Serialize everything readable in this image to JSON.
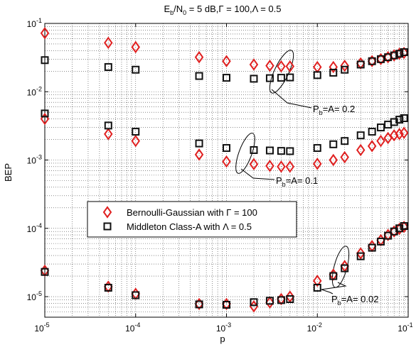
{
  "chart_data": {
    "type": "scatter",
    "title": {
      "base": "E",
      "sub": "b",
      "rest1": "/N",
      "sub2": "0",
      "rest2": " = 5 dB,Γ = 100,Λ = 0.5"
    },
    "xlabel": "p",
    "ylabel": "BEP",
    "x_scale": "log",
    "y_scale": "log",
    "xlim": [
      1e-05,
      0.1
    ],
    "ylim": [
      5e-06,
      0.1
    ],
    "grid": true,
    "x_ticks": [
      {
        "value": 1e-05,
        "base": "10",
        "exp": "-5"
      },
      {
        "value": 0.0001,
        "base": "10",
        "exp": "-4"
      },
      {
        "value": 0.001,
        "base": "10",
        "exp": "-3"
      },
      {
        "value": 0.01,
        "base": "10",
        "exp": "-2"
      },
      {
        "value": 0.1,
        "base": "10",
        "exp": "-1"
      }
    ],
    "y_ticks": [
      {
        "value": 1e-05,
        "base": "10",
        "exp": "-5"
      },
      {
        "value": 0.0001,
        "base": "10",
        "exp": "-4"
      },
      {
        "value": 0.001,
        "base": "10",
        "exp": "-3"
      },
      {
        "value": 0.01,
        "base": "10",
        "exp": "-2"
      },
      {
        "value": 0.1,
        "base": "10",
        "exp": "-1"
      }
    ],
    "legend_position": "center-left",
    "legend": [
      {
        "label": "Bernoulli-Gaussian with  Γ = 100",
        "marker": "diamond",
        "color": "#e02020"
      },
      {
        "label": "Middleton Class-A with  Λ = 0.5",
        "marker": "square",
        "color": "#111111"
      }
    ],
    "series": [
      {
        "name": "Bernoulli-Gaussian with  Γ = 100",
        "marker": "diamond",
        "color": "#e02020",
        "points": [
          [
            1e-05,
            0.072
          ],
          [
            5e-05,
            0.052
          ],
          [
            0.0001,
            0.045
          ],
          [
            0.0005,
            0.032
          ],
          [
            0.001,
            0.028
          ],
          [
            0.002,
            0.025
          ],
          [
            0.003,
            0.024
          ],
          [
            0.004,
            0.0235
          ],
          [
            0.005,
            0.0235
          ],
          [
            0.01,
            0.023
          ],
          [
            0.015,
            0.023
          ],
          [
            0.02,
            0.024
          ],
          [
            0.03,
            0.026
          ],
          [
            0.04,
            0.028
          ],
          [
            0.05,
            0.03
          ],
          [
            0.06,
            0.032
          ],
          [
            0.07,
            0.034
          ],
          [
            0.08,
            0.036
          ],
          [
            0.09,
            0.037
          ],
          [
            1e-05,
            0.004
          ],
          [
            5e-05,
            0.0024
          ],
          [
            0.0001,
            0.0019
          ],
          [
            0.0005,
            0.0012
          ],
          [
            0.001,
            0.00095
          ],
          [
            0.002,
            0.00087
          ],
          [
            0.003,
            0.00082
          ],
          [
            0.004,
            0.0008
          ],
          [
            0.005,
            0.0008
          ],
          [
            0.01,
            0.00088
          ],
          [
            0.015,
            0.001
          ],
          [
            0.02,
            0.0011
          ],
          [
            0.03,
            0.0014
          ],
          [
            0.04,
            0.0016
          ],
          [
            0.05,
            0.0019
          ],
          [
            0.06,
            0.0021
          ],
          [
            0.07,
            0.0023
          ],
          [
            0.08,
            0.0024
          ],
          [
            0.09,
            0.0025
          ],
          [
            1e-05,
            2.4e-05
          ],
          [
            5e-05,
            1.4e-05
          ],
          [
            0.0001,
            1.1e-05
          ],
          [
            0.0005,
            7.8e-06
          ],
          [
            0.001,
            7.8e-06
          ],
          [
            0.002,
            7.2e-06
          ],
          [
            0.003,
            8.2e-06
          ],
          [
            0.004,
            9.2e-06
          ],
          [
            0.005,
            1e-05
          ],
          [
            0.01,
            1.7e-05
          ],
          [
            0.015,
            2.1e-05
          ],
          [
            0.02,
            2.8e-05
          ],
          [
            0.03,
            4.3e-05
          ],
          [
            0.04,
            5.5e-05
          ],
          [
            0.05,
            6.7e-05
          ],
          [
            0.06,
            8e-05
          ],
          [
            0.07,
            9e-05
          ],
          [
            0.08,
            9.8e-05
          ],
          [
            0.09,
            0.000105
          ]
        ]
      },
      {
        "name": "Middleton Class-A with  Λ = 0.5",
        "marker": "square",
        "color": "#111111",
        "points": [
          [
            1e-05,
            0.029
          ],
          [
            5e-05,
            0.023
          ],
          [
            0.0001,
            0.021
          ],
          [
            0.0005,
            0.017
          ],
          [
            0.001,
            0.016
          ],
          [
            0.002,
            0.0155
          ],
          [
            0.003,
            0.0158
          ],
          [
            0.004,
            0.016
          ],
          [
            0.005,
            0.0162
          ],
          [
            0.01,
            0.0175
          ],
          [
            0.015,
            0.019
          ],
          [
            0.02,
            0.021
          ],
          [
            0.03,
            0.025
          ],
          [
            0.04,
            0.028
          ],
          [
            0.05,
            0.03
          ],
          [
            0.06,
            0.032
          ],
          [
            0.07,
            0.034
          ],
          [
            0.08,
            0.036
          ],
          [
            0.09,
            0.038
          ],
          [
            1e-05,
            0.0048
          ],
          [
            5e-05,
            0.0032
          ],
          [
            0.0001,
            0.0026
          ],
          [
            0.0005,
            0.00175
          ],
          [
            0.001,
            0.0015
          ],
          [
            0.002,
            0.0014
          ],
          [
            0.003,
            0.00138
          ],
          [
            0.004,
            0.00136
          ],
          [
            0.005,
            0.00135
          ],
          [
            0.01,
            0.0015
          ],
          [
            0.015,
            0.0017
          ],
          [
            0.02,
            0.0019
          ],
          [
            0.03,
            0.0023
          ],
          [
            0.04,
            0.0026
          ],
          [
            0.05,
            0.003
          ],
          [
            0.06,
            0.0033
          ],
          [
            0.07,
            0.0036
          ],
          [
            0.08,
            0.0039
          ],
          [
            0.09,
            0.0041
          ],
          [
            1e-05,
            2.3e-05
          ],
          [
            5e-05,
            1.35e-05
          ],
          [
            0.0001,
            1.05e-05
          ],
          [
            0.0005,
            7.7e-06
          ],
          [
            0.001,
            7.6e-06
          ],
          [
            0.002,
            8.3e-06
          ],
          [
            0.003,
            8.7e-06
          ],
          [
            0.004,
            8.9e-06
          ],
          [
            0.005,
            9.2e-06
          ],
          [
            0.01,
            1.35e-05
          ],
          [
            0.015,
            2e-05
          ],
          [
            0.02,
            2.6e-05
          ],
          [
            0.03,
            3.9e-05
          ],
          [
            0.04,
            5.2e-05
          ],
          [
            0.05,
            6.4e-05
          ],
          [
            0.06,
            7.8e-05
          ],
          [
            0.07,
            9e-05
          ],
          [
            0.08,
            0.0001
          ],
          [
            0.09,
            0.000108
          ]
        ]
      }
    ],
    "annotations": [
      {
        "id": "annot-0.2",
        "base": "P",
        "sub": "b",
        "rest": "=A= 0.2",
        "at": [
          0.0045,
          0.0205
        ]
      },
      {
        "id": "annot-0.1",
        "base": "P",
        "sub": "b",
        "rest": "=A= 0.1",
        "at": [
          0.0012,
          0.0013
        ]
      },
      {
        "id": "annot-0.02",
        "base": "P",
        "sub": "b",
        "rest": "=A= 0.02",
        "at": [
          0.018,
          2.5e-05
        ]
      }
    ]
  }
}
